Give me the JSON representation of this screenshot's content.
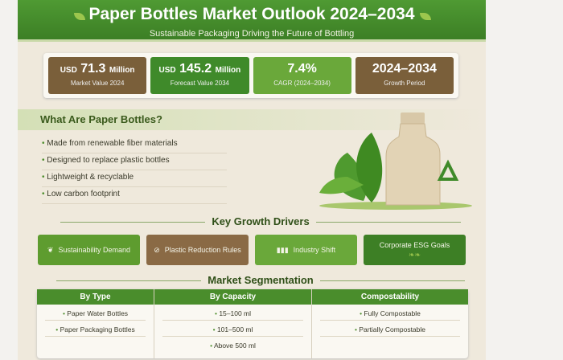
{
  "header": {
    "title": "Paper Bottles Market Outlook 2024–2034",
    "subtitle": "Sustainable Packaging Driving the Future of Bottling"
  },
  "stats": [
    {
      "prefix": "USD",
      "value": "71.3",
      "unit": "Million",
      "label": "Market Value 2024",
      "color": "#7a5f3a"
    },
    {
      "prefix": "USD",
      "value": "145.2",
      "unit": "Million",
      "label": "Forecast Value 2034",
      "color": "#3f8a2a"
    },
    {
      "prefix": "",
      "value": "7.4%",
      "unit": "",
      "label": "CAGR (2024–2034)",
      "color": "#6aa83a"
    },
    {
      "prefix": "",
      "value": "2024–2034",
      "unit": "",
      "label": "Growth Period",
      "color": "#7a5f3a"
    }
  ],
  "what": {
    "title": "What Are Paper Bottles?",
    "items": [
      "Made from renewable fiber materials",
      "Designed to replace plastic bottles",
      "Lightweight & recyclable",
      "Low carbon footprint"
    ]
  },
  "drivers": {
    "title": "Key Growth Drivers",
    "items": [
      {
        "label": "Sustainability Demand",
        "icon": "leaf-icon",
        "color": "#5e9c2f"
      },
      {
        "label": "Plastic Reduction Rules",
        "icon": "no-plastic-icon",
        "color": "#8a6a45"
      },
      {
        "label": "Industry Shift",
        "icon": "bottles-icon",
        "color": "#6aa83a"
      },
      {
        "label": "Corporate ESG Goals",
        "icon": "leaves-icon",
        "color": "#3d7f25"
      }
    ]
  },
  "segmentation": {
    "title": "Market Segmentation",
    "columns": [
      {
        "header": "By Type",
        "items": [
          "Paper Water Bottles",
          "Paper Packaging Bottles"
        ]
      },
      {
        "header": "By Capacity",
        "items": [
          "15–100 ml",
          "101–500 ml",
          "Above 500 ml"
        ]
      },
      {
        "header": "Compostability",
        "items": [
          "Fully Compostable",
          "Partially Compostable"
        ]
      }
    ]
  }
}
